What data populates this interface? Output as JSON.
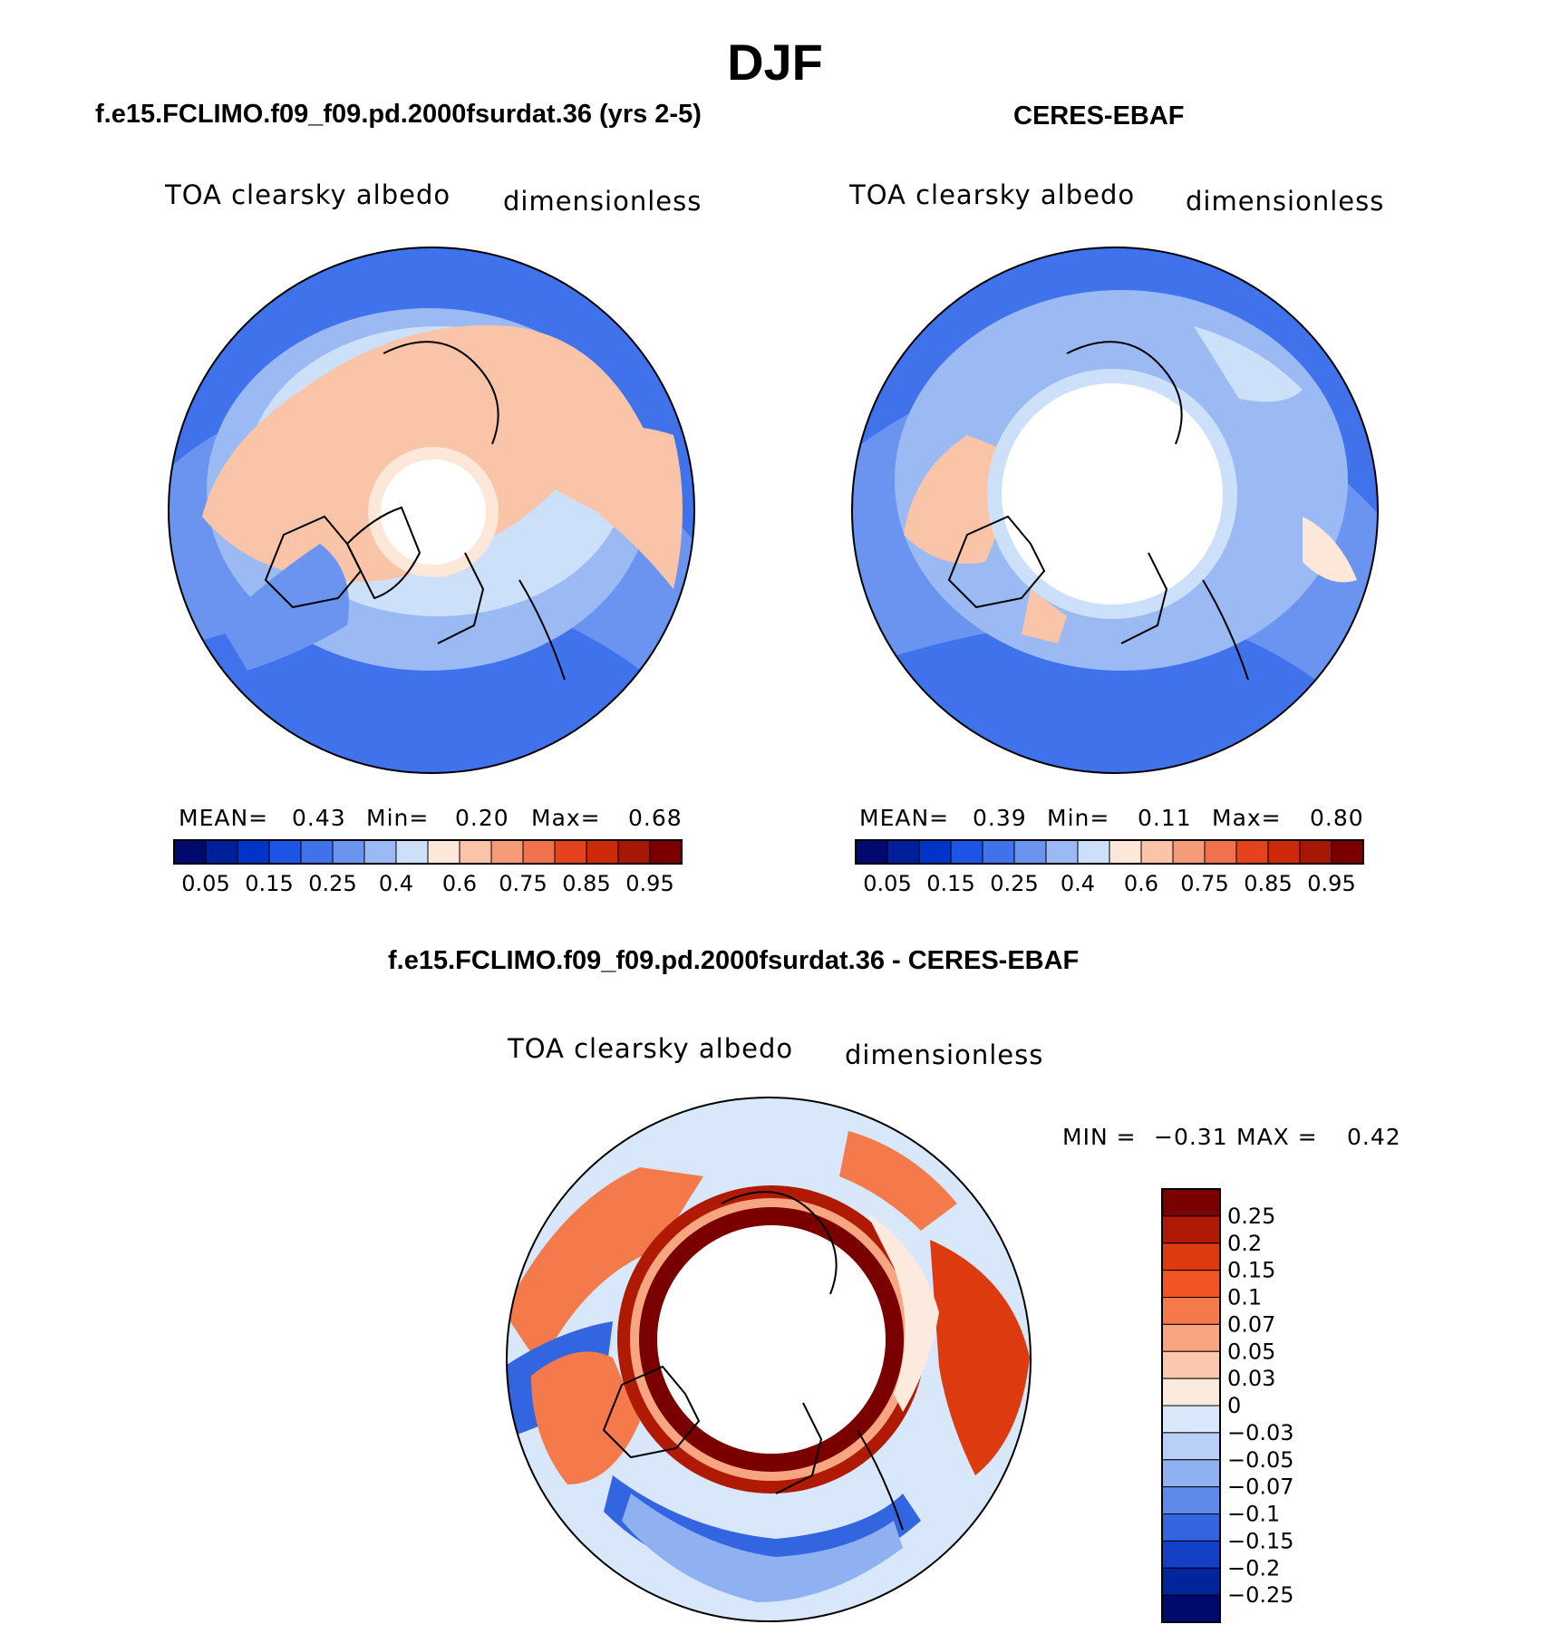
{
  "title": "DJF",
  "season": "DJF",
  "panels": [
    {
      "id": "model",
      "subtitle": "f.e15.FCLIMO.f09_f09.pd.2000fsurdat.36 (yrs 2-5)",
      "variable": "TOA clearsky albedo",
      "units": "dimensionless",
      "stats": {
        "mean_label": "MEAN=",
        "mean": "0.43",
        "min_label": "Min=",
        "min": "0.20",
        "max_label": "Max=",
        "max": "0.68"
      }
    },
    {
      "id": "obs",
      "subtitle": "CERES-EBAF",
      "variable": "TOA clearsky albedo",
      "units": "dimensionless",
      "stats": {
        "mean_label": "MEAN=",
        "mean": "0.39",
        "min_label": "Min=",
        "min": "0.11",
        "max_label": "Max=",
        "max": "0.80"
      }
    },
    {
      "id": "diff",
      "subtitle": "f.e15.FCLIMO.f09_f09.pd.2000fsurdat.36 - CERES-EBAF",
      "variable": "TOA clearsky albedo",
      "units": "dimensionless",
      "stats": {
        "min_label": "MIN =",
        "min": "−0.31",
        "max_label": "MAX =",
        "max": "0.42"
      }
    }
  ],
  "colorbar_abs": {
    "colors": [
      "#000a6e",
      "#00209a",
      "#0033c8",
      "#1d55e6",
      "#3f72eb",
      "#6b94f0",
      "#9bbaf4",
      "#cde0fa",
      "#fde7d8",
      "#f9c4a8",
      "#f59b78",
      "#f0724c",
      "#e6421e",
      "#cc2a0a",
      "#a81606",
      "#7a0000"
    ],
    "labels": [
      "0.05",
      "0.15",
      "0.25",
      "0.4",
      "0.6",
      "0.75",
      "0.85",
      "0.95"
    ]
  },
  "colorbar_diff": {
    "colors": [
      "#7a0000",
      "#b01a04",
      "#dd3a10",
      "#f25524",
      "#f47a4c",
      "#f8a582",
      "#fbc8ad",
      "#fdeadf",
      "#d9e7fb",
      "#b8cff8",
      "#8fb1f2",
      "#5f8aea",
      "#3465e0",
      "#1440c8",
      "#00259a",
      "#000a6e"
    ],
    "labels": [
      "0.25",
      "0.2",
      "0.15",
      "0.1",
      "0.07",
      "0.05",
      "0.03",
      "0",
      "−0.03",
      "−0.05",
      "−0.07",
      "−0.1",
      "−0.15",
      "−0.2",
      "−0.25"
    ]
  }
}
